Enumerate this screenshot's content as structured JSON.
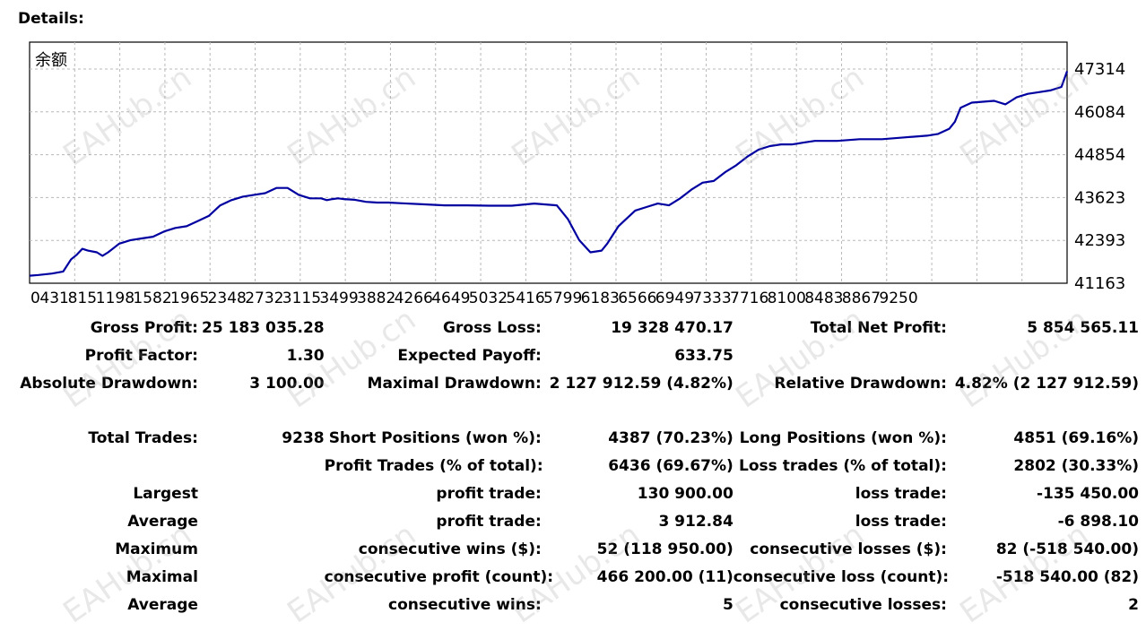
{
  "report": {
    "title": "Details:"
  },
  "chart_data": {
    "type": "line",
    "title": "余额",
    "xlabel": "",
    "ylabel": "",
    "y_ticks": [
      47314,
      46084,
      44854,
      43623,
      42393,
      41163
    ],
    "ylim": [
      41163,
      47314
    ],
    "x_ticks": [
      "0",
      "431",
      "815",
      "1198",
      "1582",
      "1965",
      "2348",
      "2732",
      "3115",
      "3499",
      "3882",
      "4266",
      "4649",
      "5032",
      "5416",
      "5799",
      "6183",
      "6566",
      "6949",
      "7333",
      "7716",
      "8100",
      "8483",
      "8867",
      "9250"
    ],
    "xlim": [
      0,
      9250
    ],
    "grid": true,
    "series": [
      {
        "color": "#0000a0",
        "x": [
          0,
          80,
          200,
          300,
          370,
          420,
          470,
          520,
          600,
          650,
          700,
          800,
          900,
          1000,
          1100,
          1200,
          1300,
          1400,
          1500,
          1600,
          1700,
          1800,
          1900,
          2000,
          2100,
          2200,
          2300,
          2400,
          2500,
          2600,
          2650,
          2700,
          2750,
          2800,
          2900,
          3000,
          3100,
          3200,
          3300,
          3500,
          3700,
          3900,
          4100,
          4300,
          4500,
          4700,
          4800,
          4900,
          5000,
          5100,
          5150,
          5200,
          5250,
          5300,
          5400,
          5500,
          5600,
          5700,
          5800,
          5900,
          6000,
          6100,
          6200,
          6300,
          6400,
          6500,
          6600,
          6700,
          6800,
          6900,
          7000,
          7200,
          7400,
          7600,
          7800,
          8000,
          8100,
          8200,
          8250,
          8300,
          8400,
          8600,
          8700,
          8750,
          8800,
          8900,
          9000,
          9100,
          9200,
          9250
        ],
        "y": [
          41380,
          41400,
          41440,
          41500,
          41850,
          41980,
          42150,
          42100,
          42050,
          41950,
          42050,
          42300,
          42400,
          42450,
          42500,
          42650,
          42750,
          42800,
          42950,
          43100,
          43400,
          43550,
          43650,
          43700,
          43750,
          43900,
          43900,
          43700,
          43600,
          43600,
          43550,
          43580,
          43600,
          43580,
          43560,
          43500,
          43480,
          43480,
          43460,
          43430,
          43400,
          43400,
          43390,
          43390,
          43450,
          43400,
          43000,
          42400,
          42050,
          42100,
          42300,
          42550,
          42800,
          42950,
          43250,
          43350,
          43450,
          43400,
          43600,
          43850,
          44050,
          44100,
          44350,
          44550,
          44800,
          45000,
          45100,
          45150,
          45150,
          45200,
          45250,
          45250,
          45300,
          45300,
          45350,
          45400,
          45450,
          45600,
          45800,
          46200,
          46350,
          46400,
          46300,
          46400,
          46500,
          46600,
          46650,
          46700,
          46800,
          47250
        ]
      }
    ]
  },
  "stats": {
    "gross_profit_label": "Gross Profit:",
    "gross_profit": "25 183 035.28",
    "gross_loss_label": "Gross Loss:",
    "gross_loss": "19 328 470.17",
    "total_net_profit_label": "Total Net Profit:",
    "total_net_profit": "5 854 565.11",
    "profit_factor_label": "Profit Factor:",
    "profit_factor": "1.30",
    "expected_payoff_label": "Expected Payoff:",
    "expected_payoff": "633.75",
    "absolute_drawdown_label": "Absolute Drawdown:",
    "absolute_drawdown": "3 100.00",
    "maximal_drawdown_label": "Maximal Drawdown:",
    "maximal_drawdown": "2 127 912.59 (4.82%)",
    "relative_drawdown_label": "Relative Drawdown:",
    "relative_drawdown": "4.82% (2 127 912.59)",
    "total_trades_label": "Total Trades:",
    "total_trades": "9238",
    "short_positions_label": "Short Positions (won %):",
    "short_positions": "4387 (70.23%)",
    "long_positions_label": "Long Positions (won %):",
    "long_positions": "4851 (69.16%)",
    "profit_trades_label": "Profit Trades (% of total):",
    "profit_trades": "6436 (69.67%)",
    "loss_trades_label": "Loss trades (% of total):",
    "loss_trades": "2802 (30.33%)",
    "largest_label": "Largest",
    "largest_profit_label": "profit trade:",
    "largest_profit": "130 900.00",
    "largest_loss_label": "loss trade:",
    "largest_loss": "-135 450.00",
    "average_label": "Average",
    "average_profit_label": "profit trade:",
    "average_profit": "3 912.84",
    "average_loss_label": "loss trade:",
    "average_loss": "-6 898.10",
    "maximum_label": "Maximum",
    "max_cons_wins_label": "consecutive wins ($):",
    "max_cons_wins": "52 (118 950.00)",
    "max_cons_losses_label": "consecutive losses ($):",
    "max_cons_losses": "82 (-518 540.00)",
    "maximal_label": "Maximal",
    "maximal_cons_profit_label": "consecutive profit (count):",
    "maximal_cons_profit": "466 200.00 (11)",
    "maximal_cons_loss_label": "consecutive loss (count):",
    "maximal_cons_loss": "-518 540.00 (82)",
    "average2_label": "Average",
    "avg_cons_wins_label": "consecutive wins:",
    "avg_cons_wins": "5",
    "avg_cons_losses_label": "consecutive losses:",
    "avg_cons_losses": "2"
  },
  "watermark": {
    "text": "EAHub.cn"
  }
}
